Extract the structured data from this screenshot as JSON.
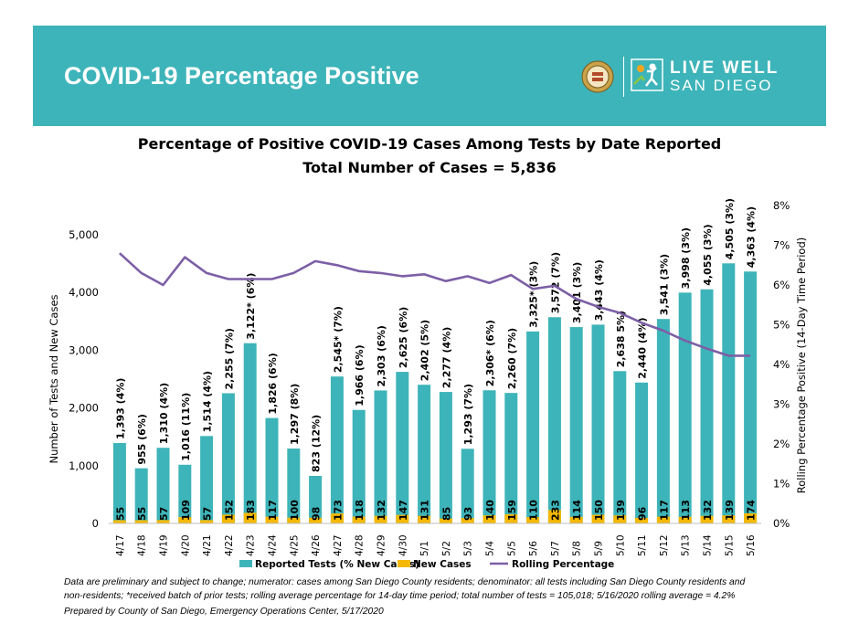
{
  "header": {
    "title": "COVID-19 Percentage Positive",
    "logo_line1": "LIVE WELL",
    "logo_line2": "SAN DIEGO"
  },
  "chart_data": {
    "type": "bar",
    "title": "Percentage of Positive COVID-19 Cases Among Tests by Date Reported",
    "subtitle": "Total Number of Cases = 5,836",
    "ylabel": "Number of Tests and New Cases",
    "y2label": "Rolling Percentage Positive (14-Day Time Period)",
    "ylim": [
      0,
      5000
    ],
    "yticks": [
      "0",
      "1,000",
      "2,000",
      "3,000",
      "4,000",
      "5,000"
    ],
    "y2lim": [
      0,
      8
    ],
    "y2ticks": [
      "0%",
      "1%",
      "2%",
      "3%",
      "4%",
      "5%",
      "6%",
      "7%",
      "8%"
    ],
    "categories": [
      "4/17",
      "4/18",
      "4/19",
      "4/20",
      "4/21",
      "4/22",
      "4/23",
      "4/24",
      "4/25",
      "4/26",
      "4/27",
      "4/28",
      "4/29",
      "4/30",
      "5/1",
      "5/2",
      "5/3",
      "5/4",
      "5/5",
      "5/6",
      "5/7",
      "5/8",
      "5/9",
      "5/10",
      "5/11",
      "5/12",
      "5/13",
      "5/14",
      "5/15",
      "5/16"
    ],
    "series": [
      {
        "name": "Reported Tests (% New Cases)",
        "axis": "left",
        "color": "#3db4b9",
        "values": [
          1393,
          955,
          1310,
          1016,
          1514,
          2255,
          3122,
          1826,
          1297,
          823,
          2545,
          1966,
          2303,
          2625,
          2402,
          2277,
          1293,
          2306,
          2260,
          3325,
          3572,
          3401,
          3443,
          2638,
          2440,
          3541,
          3998,
          4055,
          4505,
          4363
        ],
        "labels": [
          "1,393 (4%)",
          "955 (6%)",
          "1,310 (4%)",
          "1,016 (11%)",
          "1,514 (4%)",
          "2,255 (7%)",
          "3,122* (6%)",
          "1,826 (6%)",
          "1,297 (8%)",
          "823 (12%)",
          "2,545* (7%)",
          "1,966 (6%)",
          "2,303 (6%)",
          "2,625 (6%)",
          "2,402 (5%)",
          "2,277 (4%)",
          "1,293 (7%)",
          "2,306* (6%)",
          "2,260 (7%)",
          "3,325* (3%)",
          "3,572 (7%)",
          "3,401 (3%)",
          "3,443 (4%)",
          "2,638 5%)",
          "2,440 (4%)",
          "3,541 (3%)",
          "3,998 (3%)",
          "4,055 (3%)",
          "4,505 (3%)",
          "4,363 (4%)"
        ]
      },
      {
        "name": "New Cases",
        "axis": "left",
        "color": "#f5b800",
        "values": [
          55,
          55,
          57,
          109,
          57,
          152,
          183,
          117,
          100,
          98,
          173,
          118,
          132,
          147,
          131,
          85,
          93,
          140,
          159,
          110,
          233,
          114,
          150,
          139,
          96,
          117,
          113,
          132,
          139,
          174
        ]
      },
      {
        "name": "Rolling Percentage",
        "axis": "right",
        "type": "line",
        "color": "#7d5fa6",
        "values": [
          6.8,
          6.3,
          6.0,
          6.7,
          6.3,
          6.15,
          6.15,
          6.15,
          6.3,
          6.6,
          6.5,
          6.35,
          6.3,
          6.22,
          6.27,
          6.1,
          6.22,
          6.05,
          6.25,
          5.9,
          5.98,
          5.65,
          5.45,
          5.3,
          5.05,
          4.85,
          4.6,
          4.4,
          4.22,
          4.22
        ]
      }
    ],
    "legend": "bottom",
    "grid": false
  },
  "footnotes": {
    "line1": "Data are preliminary and subject to change; numerator: cases among San Diego County residents; denominator: all tests including San Diego County residents and",
    "line2": "non-residents; *received batch of prior tests; rolling average percentage for 14-day time period; total number of tests = 105,018; 5/16/2020 rolling average = 4.2%",
    "prepared": "Prepared by County of San Diego, Emergency Operations Center, 5/17/2020"
  }
}
